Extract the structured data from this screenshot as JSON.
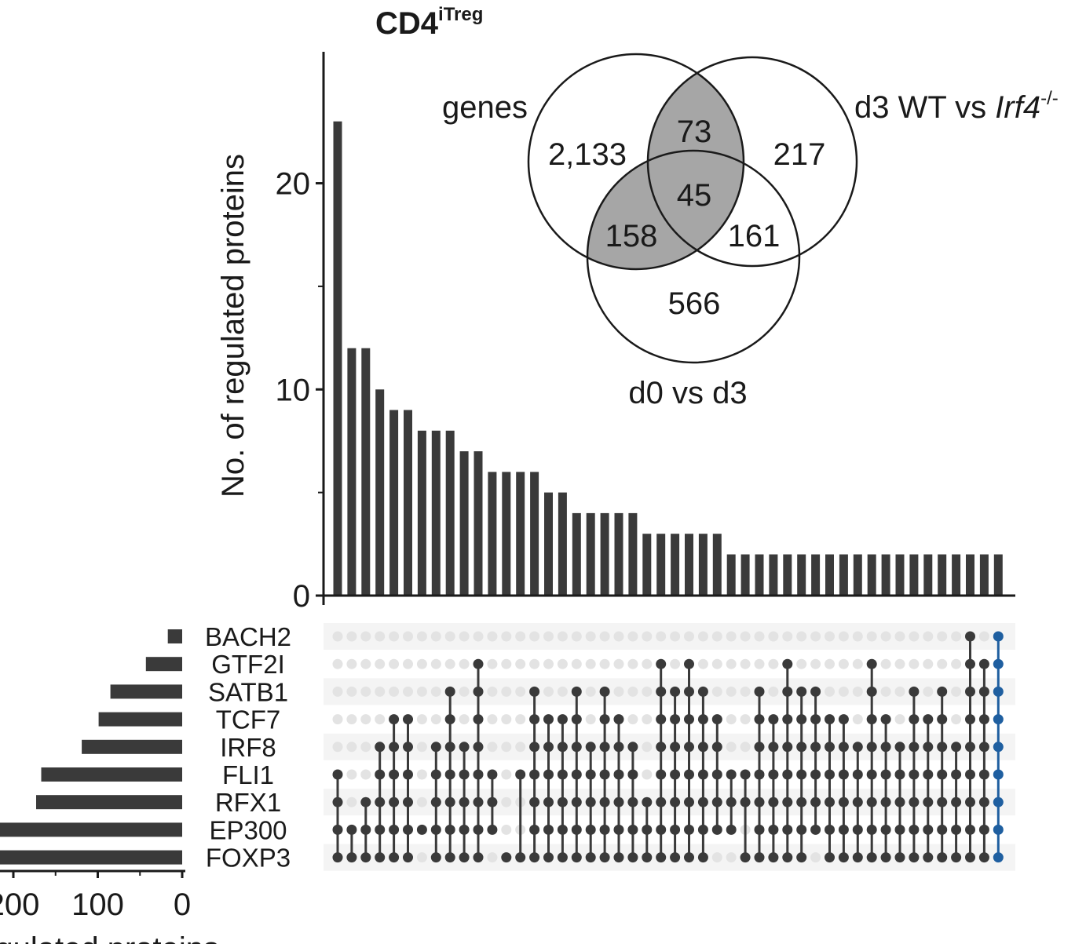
{
  "title": {
    "base": "CD4",
    "superscript": "iTreg"
  },
  "colors": {
    "bar": "#3a3a3a",
    "dot_on": "#3a3a3a",
    "dot_off": "#e3e3e3",
    "stripe": "#f4f4f4",
    "highlight": "#1f5fa0",
    "venn_shade": "#a6a6a6"
  },
  "chart_data": [
    {
      "type": "bar",
      "role": "intersection-size",
      "ylabel": "No. of regulated proteins",
      "ylim": [
        0,
        23
      ],
      "yticks_major": [
        0,
        10,
        20
      ],
      "yticks_minor": [
        5,
        15
      ],
      "values": [
        23,
        12,
        12,
        10,
        9,
        9,
        8,
        8,
        8,
        7,
        7,
        6,
        6,
        6,
        6,
        5,
        5,
        4,
        4,
        4,
        4,
        4,
        3,
        3,
        3,
        3,
        3,
        3,
        2,
        2,
        2,
        2,
        2,
        2,
        2,
        2,
        2,
        2,
        2,
        2,
        2,
        2,
        2,
        2,
        2,
        2,
        2,
        2
      ]
    },
    {
      "type": "bar",
      "role": "set-size",
      "orientation": "horizontal",
      "xlabel": "No. of regulated proteins",
      "xaxis_inverted": true,
      "xticks": [
        200,
        100,
        0
      ],
      "categories": [
        "BACH2",
        "GTF2I",
        "SATB1",
        "TCF7",
        "IRF8",
        "FLI1",
        "RFX1",
        "EP300",
        "FOXP3"
      ],
      "values": [
        17,
        43,
        85,
        99,
        119,
        167,
        173,
        250,
        250
      ]
    },
    {
      "type": "table",
      "role": "intersection-matrix",
      "rows": [
        "BACH2",
        "GTF2I",
        "SATB1",
        "TCF7",
        "IRF8",
        "FLI1",
        "RFX1",
        "EP300",
        "FOXP3"
      ],
      "highlight_last_column": true,
      "columns": [
        [
          5,
          6,
          7,
          8
        ],
        [
          7,
          8
        ],
        [
          6,
          7,
          8
        ],
        [
          4,
          5,
          6,
          7,
          8
        ],
        [
          3,
          4,
          5,
          6,
          7,
          8
        ],
        [
          3,
          4,
          5,
          6,
          7,
          8
        ],
        [
          7
        ],
        [
          4,
          5,
          6,
          7,
          8
        ],
        [
          2,
          3,
          4,
          5,
          6,
          7,
          8
        ],
        [
          4,
          5,
          6,
          7,
          8
        ],
        [
          1,
          2,
          3,
          4,
          5,
          6,
          7,
          8
        ],
        [
          5,
          6,
          7
        ],
        [
          8
        ],
        [
          5,
          8
        ],
        [
          2,
          3,
          4,
          5,
          6,
          7,
          8
        ],
        [
          3,
          4,
          5,
          6,
          7,
          8
        ],
        [
          3,
          4,
          5,
          6,
          7,
          8
        ],
        [
          2,
          3,
          4,
          5,
          6,
          7,
          8
        ],
        [
          4,
          5,
          6,
          7,
          8
        ],
        [
          2,
          3,
          4,
          5,
          6,
          7,
          8
        ],
        [
          3,
          4,
          5,
          6,
          7,
          8
        ],
        [
          4,
          5,
          6,
          7,
          8
        ],
        [
          6,
          7,
          8
        ],
        [
          1,
          2,
          3,
          4,
          5,
          6,
          7,
          8
        ],
        [
          2,
          3,
          4,
          5,
          6,
          7,
          8
        ],
        [
          1,
          2,
          3,
          4,
          5,
          6,
          7,
          8
        ],
        [
          2,
          3,
          4,
          5,
          6,
          7,
          8
        ],
        [
          3,
          4,
          5,
          6,
          7
        ],
        [
          5,
          6,
          7
        ],
        [
          5,
          6,
          8
        ],
        [
          2,
          3,
          4,
          5,
          6,
          7,
          8
        ],
        [
          3,
          4,
          5,
          6,
          7,
          8
        ],
        [
          1,
          2,
          3,
          4,
          5,
          6,
          7,
          8
        ],
        [
          2,
          3,
          4,
          5,
          6,
          7,
          8
        ],
        [
          2,
          3,
          4,
          5,
          6,
          7
        ],
        [
          3,
          4,
          5,
          6,
          7,
          8
        ],
        [
          3,
          4,
          5,
          6,
          7,
          8
        ],
        [
          4,
          5,
          6,
          7,
          8
        ],
        [
          1,
          2,
          3,
          4,
          5,
          6,
          7,
          8
        ],
        [
          3,
          4,
          5,
          6,
          7,
          8
        ],
        [
          4,
          5,
          6,
          7,
          8
        ],
        [
          2,
          3,
          4,
          5,
          6,
          7,
          8
        ],
        [
          3,
          4,
          5,
          6,
          7,
          8
        ],
        [
          2,
          3,
          4,
          5,
          6,
          7,
          8
        ],
        [
          4,
          5,
          6,
          7,
          8
        ],
        [
          0,
          1,
          2,
          3,
          4,
          5,
          6,
          7,
          8
        ],
        [
          1,
          2,
          3,
          4,
          5,
          6,
          7,
          8
        ],
        [
          0,
          1,
          2,
          3,
          4,
          5,
          6,
          7,
          8
        ]
      ]
    }
  ],
  "venn": {
    "sets": [
      {
        "label": "genes"
      },
      {
        "label": "d3 WT vs ",
        "label_italic": "Irf4",
        "label_sup": "-/-"
      },
      {
        "label": "d0 vs d3"
      }
    ],
    "regions": {
      "genes_only": "2,133",
      "wt_only": "217",
      "d0d3_only": "566",
      "genes_wt": "73",
      "genes_d0d3": "158",
      "wt_d0d3": "161",
      "all": "45"
    },
    "shaded_regions": [
      "genes_wt",
      "genes_d0d3",
      "all"
    ]
  }
}
